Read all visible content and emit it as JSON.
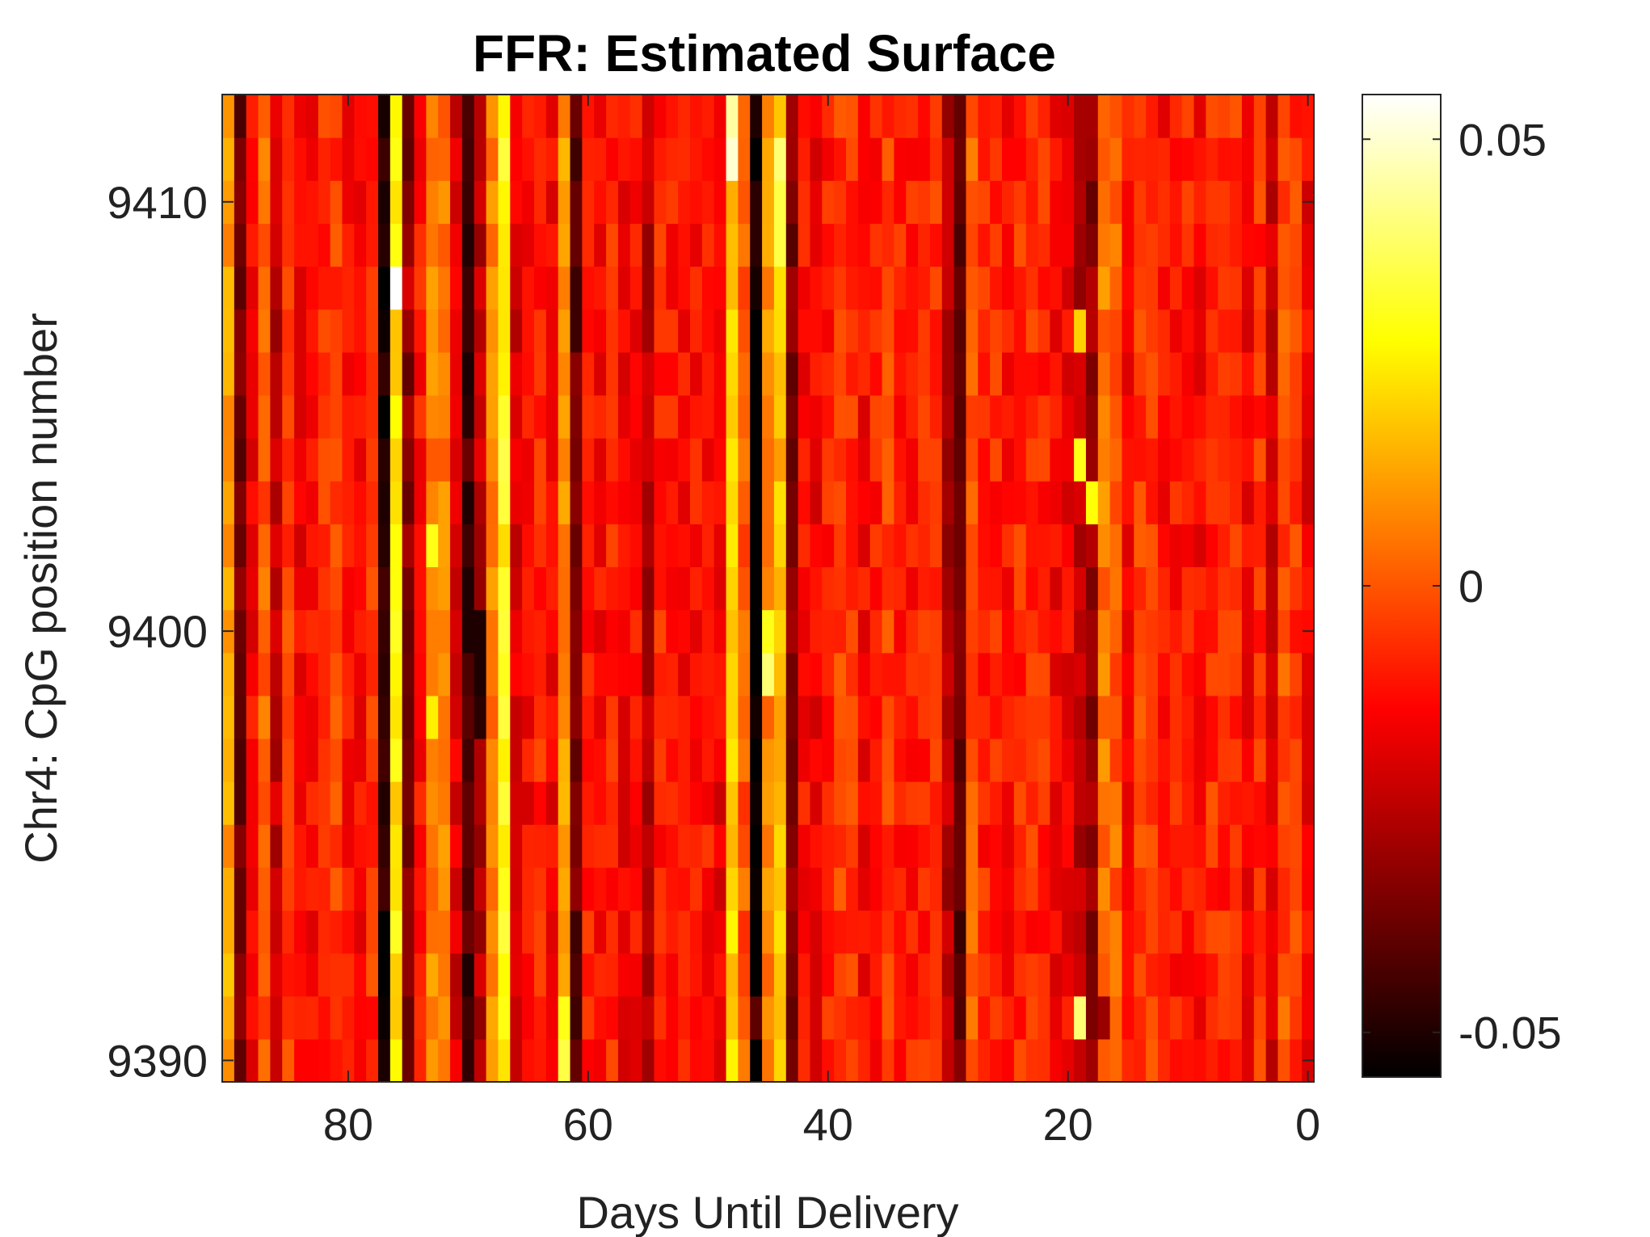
{
  "chart_data": {
    "type": "heatmap",
    "title": "FFR: Estimated Surface",
    "xlabel": "Days Until Delivery",
    "ylabel": "Chr4: CpG position number",
    "xlim": [
      90.5,
      -0.5
    ],
    "ylim": [
      9389.5,
      9412.5
    ],
    "x_direction": "reversed",
    "y_direction": "normal",
    "x_ticks": [
      80,
      60,
      40,
      20,
      0
    ],
    "x_tick_labels": [
      "80",
      "60",
      "40",
      "20",
      "0"
    ],
    "y_ticks": [
      9390,
      9400,
      9410
    ],
    "y_tick_labels": [
      "9390",
      "9400",
      "9410"
    ],
    "colormap": "hot",
    "colorbar": {
      "clim": [
        -0.055,
        0.055
      ],
      "ticks": [
        -0.05,
        0,
        0.05
      ],
      "tick_labels": [
        "-0.05",
        "0",
        "0.05"
      ]
    },
    "columns": {
      "count": 91,
      "x_start": 90,
      "x_end": 0,
      "baseline": -0.01,
      "column_offsets": {
        "90": 0.02,
        "89": -0.025,
        "88": -0.005,
        "87": 0.01,
        "86": -0.01,
        "85": 0.005,
        "77": -0.045,
        "76": 0.04,
        "75": -0.02,
        "74": 0.003,
        "73": 0.012,
        "72": 0.018,
        "71": -0.005,
        "70": -0.035,
        "69": -0.018,
        "68": 0.02,
        "67": 0.035,
        "66": -0.012,
        "62": 0.015,
        "61": -0.03,
        "60": 0.005,
        "55": -0.015,
        "53": 0.005,
        "48": 0.035,
        "47": 0.012,
        "46": -0.045,
        "45": 0.015,
        "44": 0.03,
        "43": -0.02,
        "30": -0.01,
        "29": -0.03,
        "28": 0.012,
        "19": -0.015,
        "18": -0.022,
        "17": 0.015,
        "16": 0.01,
        "15": -0.005,
        "3": -0.015,
        "2": 0.01
      }
    },
    "highlights": [
      {
        "x": 48,
        "y": 9411,
        "v": 0.05
      },
      {
        "x": 48,
        "y": 9412,
        "v": 0.045
      },
      {
        "x": 46,
        "y": 9411,
        "v": -0.055
      },
      {
        "x": 46,
        "y": 9412,
        "v": -0.05
      },
      {
        "x": 46,
        "y": 9410,
        "v": -0.048
      },
      {
        "x": 46,
        "y": 9409,
        "v": -0.048
      },
      {
        "x": 44,
        "y": 9411,
        "v": 0.04
      },
      {
        "x": 44,
        "y": 9410,
        "v": 0.035
      },
      {
        "x": 44,
        "y": 9409,
        "v": 0.035
      },
      {
        "x": 76,
        "y": 9408,
        "v": 0.055
      },
      {
        "x": 77,
        "y": 9408,
        "v": -0.055
      },
      {
        "x": 75,
        "y": 9408,
        "v": -0.02
      },
      {
        "x": 77,
        "y": 9403,
        "v": -0.05
      },
      {
        "x": 70,
        "y": 9403,
        "v": -0.05
      },
      {
        "x": 70,
        "y": 9402,
        "v": -0.045
      },
      {
        "x": 70,
        "y": 9401,
        "v": -0.05
      },
      {
        "x": 69,
        "y": 9400,
        "v": -0.05
      },
      {
        "x": 69,
        "y": 9399,
        "v": -0.05
      },
      {
        "x": 69,
        "y": 9398,
        "v": -0.048
      },
      {
        "x": 73,
        "y": 9402,
        "v": 0.03
      },
      {
        "x": 73,
        "y": 9398,
        "v": 0.025
      },
      {
        "x": 45,
        "y": 9400,
        "v": 0.03
      },
      {
        "x": 45,
        "y": 9399,
        "v": 0.04
      },
      {
        "x": 46,
        "y": 9391,
        "v": -0.04
      },
      {
        "x": 61,
        "y": 9391,
        "v": -0.045
      },
      {
        "x": 62,
        "y": 9391,
        "v": 0.03
      },
      {
        "x": 62,
        "y": 9390,
        "v": 0.035
      },
      {
        "x": 18,
        "y": 9391,
        "v": -0.035
      },
      {
        "x": 19,
        "y": 9391,
        "v": 0.04
      },
      {
        "x": 17,
        "y": 9391,
        "v": -0.03
      },
      {
        "x": 18,
        "y": 9403,
        "v": 0.028
      },
      {
        "x": 19,
        "y": 9404,
        "v": 0.03
      },
      {
        "x": 18,
        "y": 9404,
        "v": -0.03
      },
      {
        "x": 18,
        "y": 9407,
        "v": -0.025
      },
      {
        "x": 19,
        "y": 9407,
        "v": 0.02
      }
    ]
  }
}
